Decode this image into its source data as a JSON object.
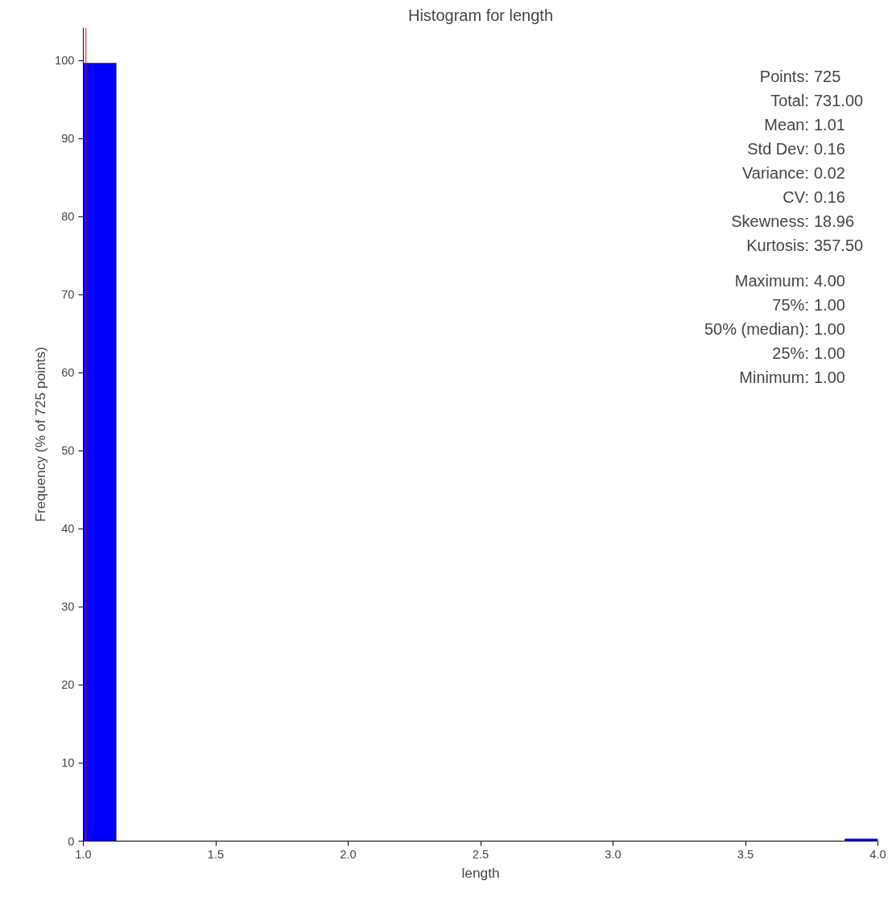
{
  "chart_data": {
    "type": "histogram",
    "title": "Histogram for length",
    "xlabel": "length",
    "ylabel": "Frequency (% of 725 points)",
    "bins": [
      1.0,
      1.125,
      1.25,
      1.375,
      1.5,
      1.625,
      1.75,
      1.875,
      2.0,
      2.125,
      2.25,
      2.375,
      2.5,
      2.625,
      2.75,
      2.875,
      3.0,
      3.125,
      3.25,
      3.375,
      3.5,
      3.625,
      3.75,
      3.875,
      4.0
    ],
    "values": [
      99.7,
      0,
      0,
      0,
      0,
      0,
      0,
      0,
      0,
      0,
      0,
      0,
      0,
      0,
      0,
      0,
      0,
      0,
      0,
      0,
      0,
      0,
      0,
      0.3
    ],
    "color": "#0000ff",
    "xlim": [
      1.0,
      4.0
    ],
    "ylim": [
      0,
      104.2
    ],
    "xticks": [
      {
        "value": 1.0,
        "label": "1.0"
      },
      1.5,
      {
        "value": 2.0,
        "label": "2.0"
      },
      2.5,
      {
        "value": 3.0,
        "label": "3.0"
      },
      3.5,
      {
        "value": 4.0,
        "label": "4.0"
      }
    ],
    "yticks": [
      0,
      10,
      20,
      30,
      40,
      50,
      60,
      70,
      80,
      90,
      100
    ],
    "grid": false,
    "ref_lines": [
      {
        "axis": "x",
        "value": 1.0,
        "color": "#0000ff"
      },
      {
        "axis": "x",
        "value": 1.01,
        "color": "#ff0000"
      }
    ],
    "annotations": [
      "Points: 725",
      "Total: 731.00",
      "Mean: 1.01",
      "Std Dev: 0.16",
      "Variance: 0.02",
      "CV: 0.16",
      "Skewness: 18.96",
      "Kurtosis: 357.50",
      "Maximum: 4.00",
      "75%: 1.00",
      "50% (median): 1.00",
      "25%: 1.00",
      "Minimum: 1.00"
    ]
  }
}
